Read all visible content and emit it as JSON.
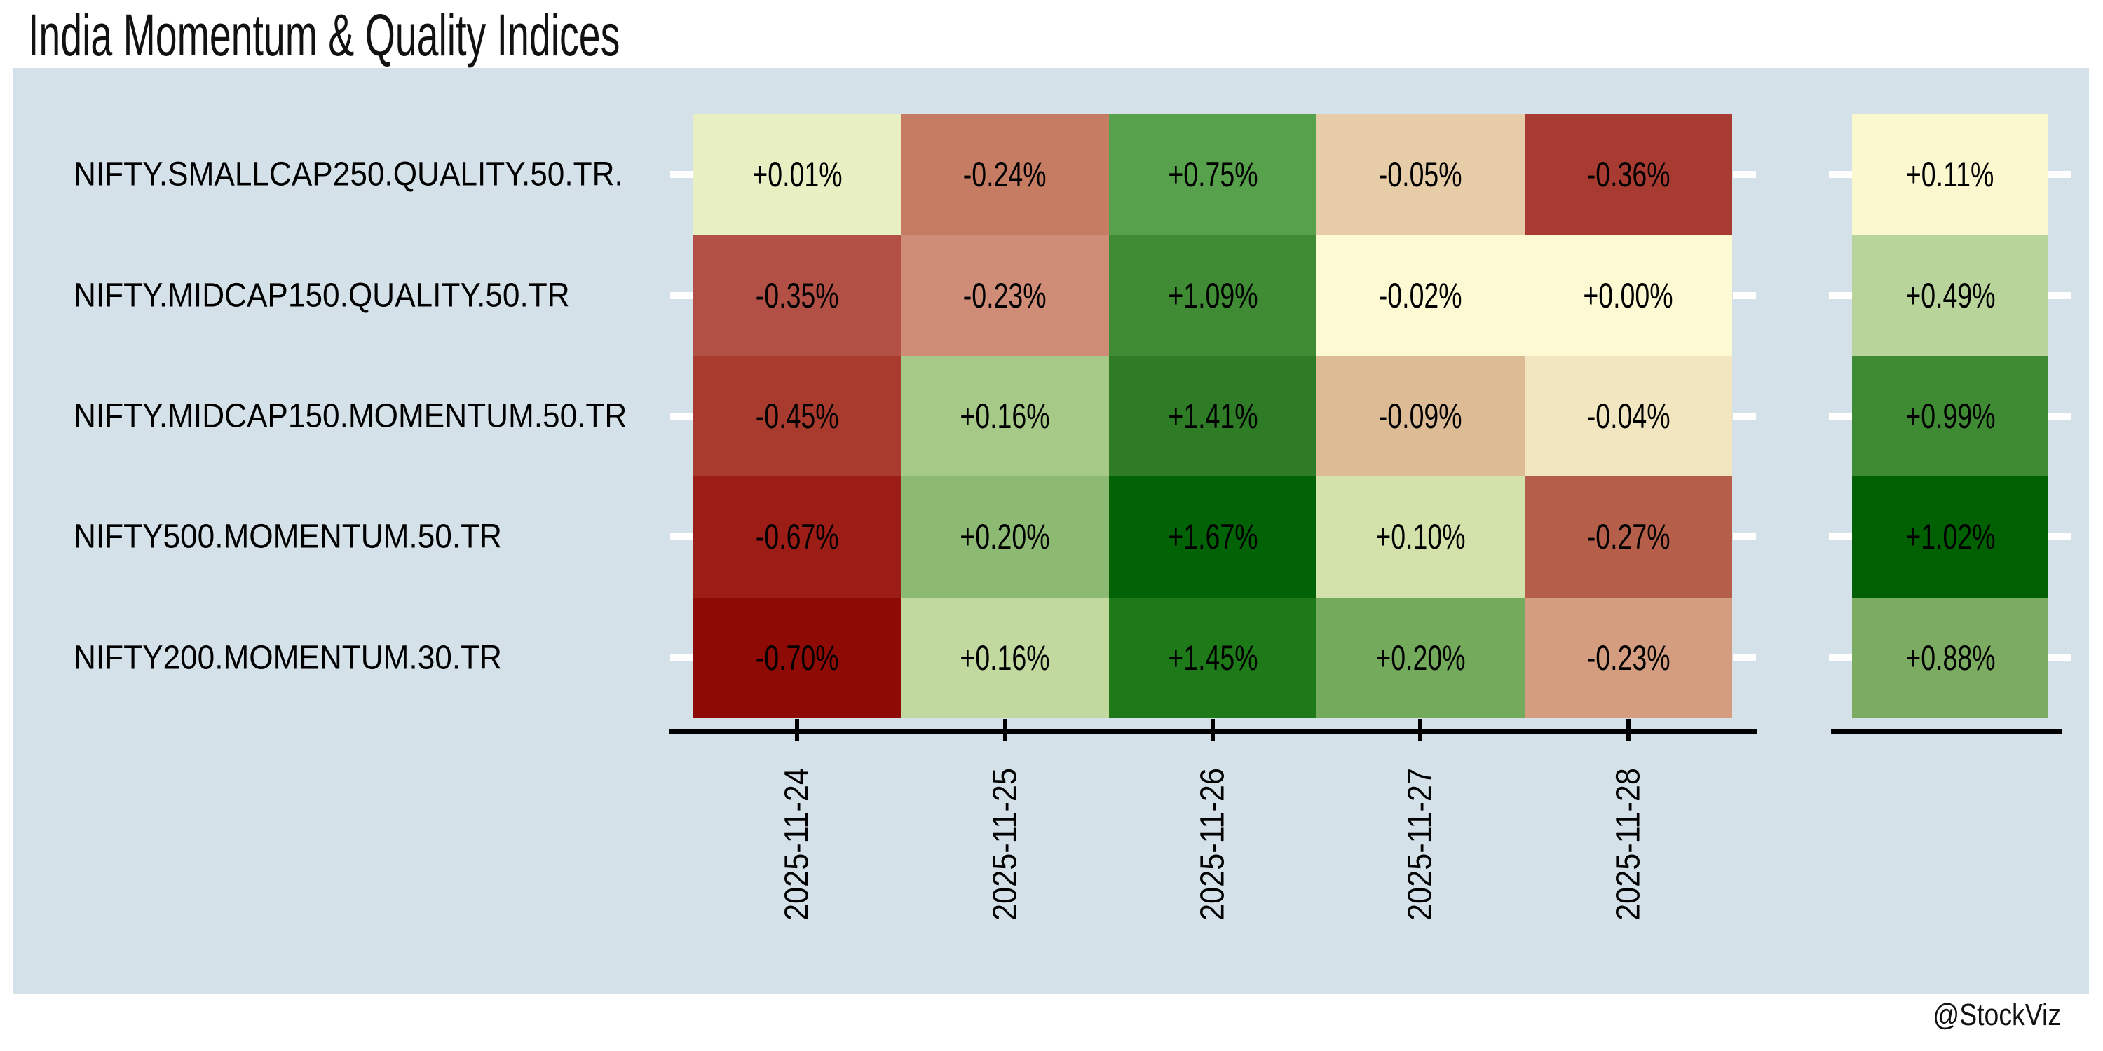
{
  "title": "India Momentum & Quality Indices",
  "watermark": "@StockViz",
  "colors": {
    "page_bg": "#ffffff",
    "panel_bg": "#d4e1e9",
    "axis": "#000000",
    "row_tick": "#ffffff",
    "cell_text": "#000000",
    "title_text": "#111111"
  },
  "chart_data": {
    "type": "heatmap",
    "title": "India Momentum & Quality Indices",
    "x_dates": [
      "2025-11-24",
      "2025-11-25",
      "2025-11-26",
      "2025-11-27",
      "2025-11-28"
    ],
    "x_labels_rotated": true,
    "value_format": "signed percent, 2 decimals",
    "summary_column": "cumulative total per index",
    "rows": [
      {
        "label": "NIFTY.SMALLCAP250.QUALITY.50.TR.",
        "daily_pct": [
          0.01,
          -0.24,
          0.75,
          -0.05,
          -0.36
        ],
        "daily_labels": [
          "+0.01%",
          "-0.24%",
          "+0.75%",
          "-0.05%",
          "-0.36%"
        ],
        "daily_colors": [
          "#e7efc3",
          "#c67b63",
          "#57a04c",
          "#e6cda8",
          "#a83b31"
        ],
        "total_pct": 0.11,
        "total_label": "+0.11%",
        "total_color": "#fbf8d0"
      },
      {
        "label": "NIFTY.MIDCAP150.QUALITY.50.TR",
        "daily_pct": [
          -0.35,
          -0.23,
          1.09,
          -0.02,
          0.0
        ],
        "daily_labels": [
          "-0.35%",
          "-0.23%",
          "+1.09%",
          "-0.02%",
          "+0.00%"
        ],
        "daily_colors": [
          "#b25045",
          "#cf8d78",
          "#3f8c35",
          "#fdf9d3",
          "#fdf9d3"
        ],
        "total_pct": 0.49,
        "total_label": "+0.49%",
        "total_color": "#b9d49a"
      },
      {
        "label": "NIFTY.MIDCAP150.MOMENTUM.50.TR",
        "daily_pct": [
          -0.45,
          0.16,
          1.41,
          -0.09,
          -0.04
        ],
        "daily_labels": [
          "-0.45%",
          "+0.16%",
          "+1.41%",
          "-0.09%",
          "-0.04%"
        ],
        "daily_colors": [
          "#a93a2e",
          "#a6c987",
          "#2e7d26",
          "#ddbb94",
          "#f2e6c1"
        ],
        "total_pct": 0.99,
        "total_label": "+0.99%",
        "total_color": "#3e8b33"
      },
      {
        "label": "NIFTY500.MOMENTUM.50.TR",
        "daily_pct": [
          -0.67,
          0.2,
          1.67,
          0.1,
          -0.27
        ],
        "daily_labels": [
          "-0.67%",
          "+0.20%",
          "+1.67%",
          "+0.10%",
          "-0.27%"
        ],
        "daily_colors": [
          "#9c1c16",
          "#8cba72",
          "#016306",
          "#d2e2aa",
          "#b55f4a"
        ],
        "total_pct": 1.02,
        "total_label": "+1.02%",
        "total_color": "#016001"
      },
      {
        "label": "NIFTY200.MOMENTUM.30.TR",
        "daily_pct": [
          -0.7,
          0.16,
          1.45,
          0.2,
          -0.23
        ],
        "daily_labels": [
          "-0.70%",
          "+0.16%",
          "+1.45%",
          "+0.20%",
          "-0.23%"
        ],
        "daily_colors": [
          "#8e0a04",
          "#c1d89f",
          "#1e7a18",
          "#74aa5c",
          "#d49d7f"
        ],
        "total_pct": 0.88,
        "total_label": "+0.88%",
        "total_color": "#7cab62"
      }
    ]
  }
}
